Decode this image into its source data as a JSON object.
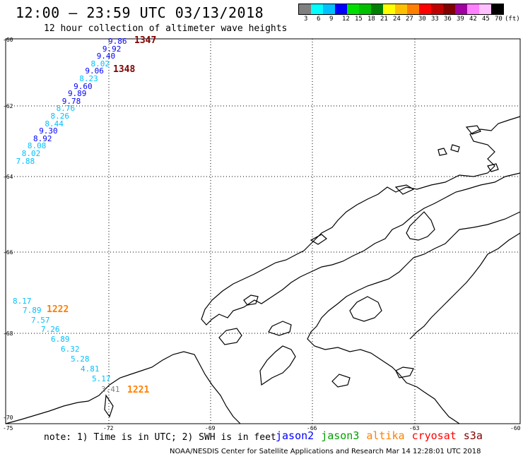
{
  "title": "12:00 – 23:59 UTC 03/13/2018",
  "subtitle": "12 hour collection of altimeter wave heights",
  "legend": {
    "colors": [
      "#808080",
      "#00ffff",
      "#00c0ff",
      "#0000ff",
      "#00e000",
      "#00c000",
      "#008000",
      "#ffff00",
      "#ffc000",
      "#ff8000",
      "#ff0000",
      "#c00000",
      "#800000",
      "#a000a0",
      "#ff80ff",
      "#ffc0ff",
      "#000000"
    ],
    "ticks": [
      "3",
      "6",
      "9",
      "12",
      "15",
      "18",
      "21",
      "24",
      "27",
      "30",
      "33",
      "36",
      "39",
      "42",
      "45",
      "70",
      "(ft)"
    ]
  },
  "axes": {
    "lat_labels": [
      "-60",
      "-62",
      "-64",
      "-66",
      "-68",
      "-70"
    ],
    "lon_labels": [
      "-75",
      "-72",
      "-69",
      "-66",
      "-63",
      "-60"
    ]
  },
  "tracks": {
    "t1347": {
      "orbit": "1347",
      "orbit_color": "#800000",
      "values": [
        "9.86",
        "9.92",
        "9.40",
        "8.02",
        "9.06",
        "8.23",
        "9.60",
        "9.89",
        "9.78",
        "8.76",
        "8.26",
        "8.44",
        "9.30",
        "8.92",
        "8.08",
        "8.02",
        "7.88"
      ],
      "colors": [
        "#0000ff",
        "#0000ff",
        "#0000ff",
        "#00c0ff",
        "#0000ff",
        "#00c0ff",
        "#0000ff",
        "#0000ff",
        "#0000ff",
        "#00c0ff",
        "#00c0ff",
        "#00c0ff",
        "#0000ff",
        "#0000ff",
        "#00c0ff",
        "#00c0ff",
        "#00c0ff"
      ]
    },
    "t1348": {
      "orbit": "1348",
      "orbit_color": "#800000"
    },
    "t1222": {
      "orbit": "1222",
      "orbit_color": "#ff8000",
      "values": [
        "8.17",
        "7.89",
        "7.57",
        "7.26",
        "6.89",
        "6.32",
        "5.28",
        "4.81",
        "5.17",
        "3.41"
      ],
      "colors": [
        "#00c0ff",
        "#00c0ff",
        "#00c0ff",
        "#00c0ff",
        "#00c0ff",
        "#00c0ff",
        "#00c0ff",
        "#00c0ff",
        "#00c0ff",
        "#808080"
      ]
    },
    "t1221": {
      "orbit": "1221",
      "orbit_color": "#ff8000"
    }
  },
  "note": "note: 1) Time is in UTC; 2) SWH is in feet",
  "satellites": [
    {
      "name": "jason2",
      "color": "#0000ff"
    },
    {
      "name": "jason3",
      "color": "#00a000"
    },
    {
      "name": "altika",
      "color": "#ff8000"
    },
    {
      "name": "cryosat",
      "color": "#ff0000"
    },
    {
      "name": "s3a",
      "color": "#800000"
    }
  ],
  "credit": "NOAA/NESDIS Center for Satellite Applications and Research   Mar 14 12:28:01 UTC 2018"
}
